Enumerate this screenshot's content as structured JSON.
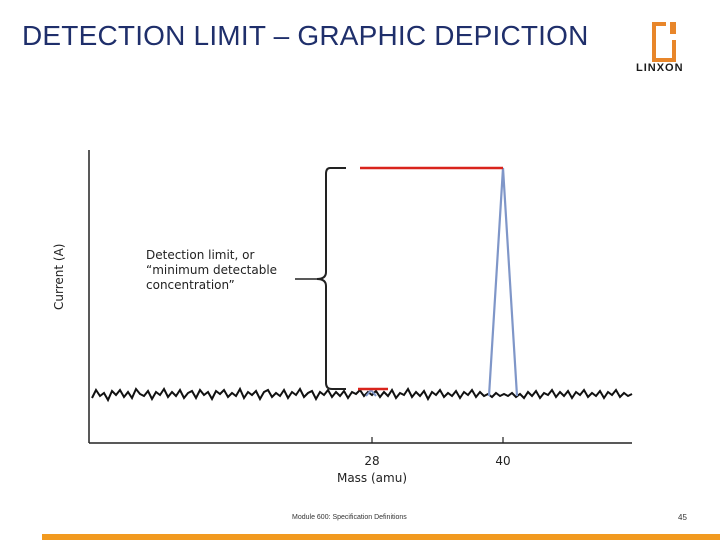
{
  "slide": {
    "title": "DETECTION LIMIT – GRAPHIC DEPICTION",
    "logo_text": "LINXON",
    "brand_color": "#e8862a",
    "footer_text": "Module 600: Specification Definitions",
    "page_number": "45"
  },
  "chart_data": {
    "type": "line",
    "ylabel": "Current (A)",
    "xlabel": "Mass (amu)",
    "x_ticks": [
      "28",
      "40"
    ],
    "annotation": "Detection limit, or “minimum detectable concentration”",
    "signal_color": "#7f96c8",
    "marker_color": "#d9241c",
    "noise_color": "#111111"
  }
}
